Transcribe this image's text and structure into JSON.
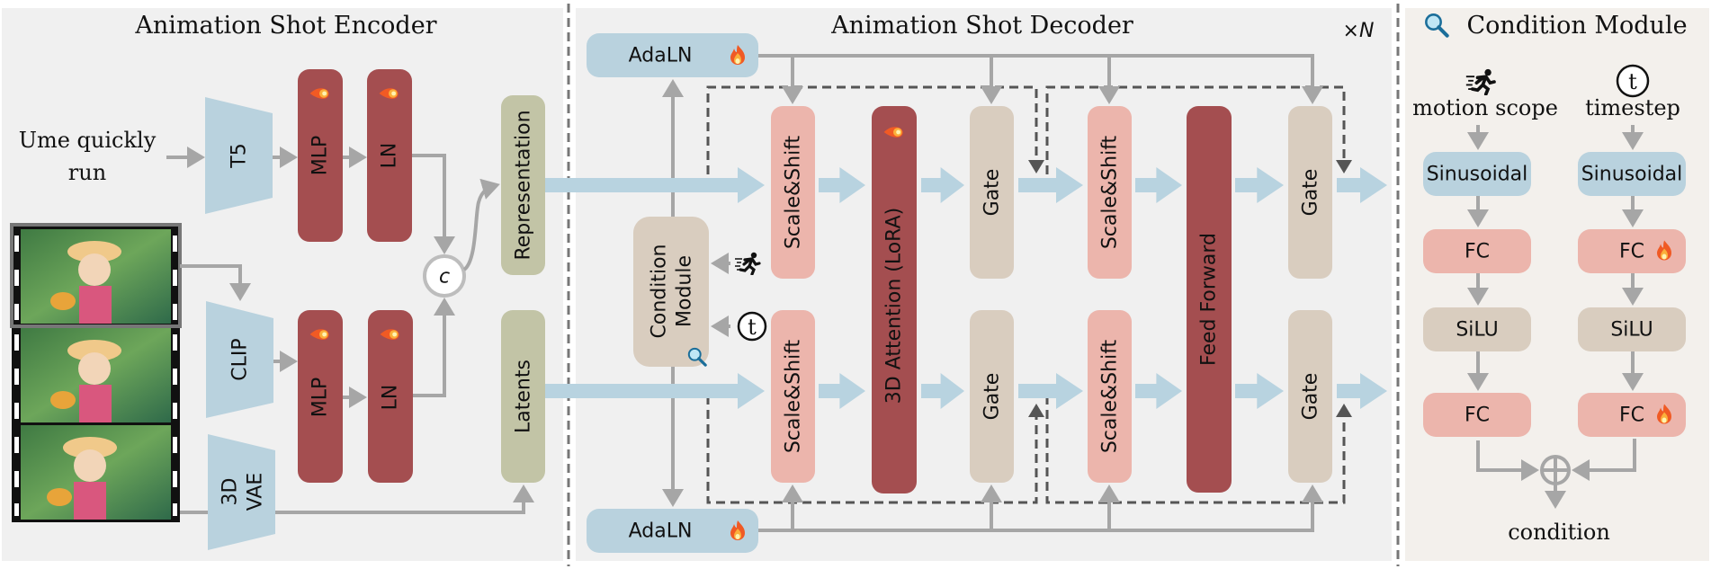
{
  "encoder": {
    "title": "Animation Shot Encoder",
    "input_text": [
      "Ume quickly",
      "run"
    ],
    "t5": "T5",
    "clip": "CLIP",
    "vae": [
      "3D",
      "VAE"
    ],
    "mlp": "MLP",
    "ln": "LN",
    "concat": "c",
    "representation": "Representation",
    "latents": "Latents"
  },
  "decoder": {
    "title": "Animation Shot Decoder",
    "repeat": "×N",
    "adaln": "AdaLN",
    "condition_module": [
      "Condition",
      "Module"
    ],
    "scale_shift": "Scale&Shift",
    "attention": "3D Attention (LoRA)",
    "gate": "Gate",
    "feed_forward": "Feed Forward",
    "timestep_symbol": "t"
  },
  "condition_module": {
    "title": "Condition Module",
    "motion_scope": "motion scope",
    "timestep": "timestep",
    "timestep_symbol": "t",
    "sinusoidal": "Sinusoidal",
    "fc": "FC",
    "silu": "SiLU",
    "output": "condition"
  },
  "colors": {
    "panel": "#f0f0f0",
    "condition_panel": "#f3f0ec",
    "light_blue": "#b9d2de",
    "dark_red": "#a44e50",
    "pink": "#ecb5ac",
    "beige": "#d9cdbf",
    "olive": "#c2c4a6",
    "arrow_gray": "#a6a6a6",
    "flow_arrow": "#b8d3e0"
  }
}
